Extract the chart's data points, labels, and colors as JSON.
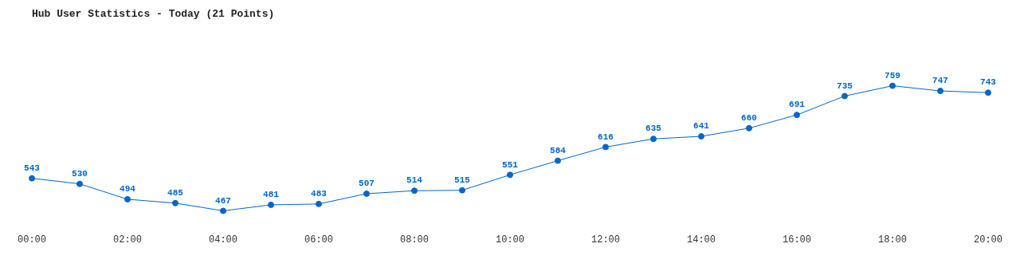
{
  "chart_data": {
    "type": "line",
    "title": "Hub User Statistics - Today (21 Points)",
    "categories": [
      "00:00",
      null,
      "02:00",
      null,
      "04:00",
      null,
      "06:00",
      null,
      "08:00",
      null,
      "10:00",
      null,
      "12:00",
      null,
      "14:00",
      null,
      "16:00",
      null,
      "18:00",
      null,
      "20:00"
    ],
    "series": [
      {
        "color": "#0066cc",
        "values": [
          543,
          530,
          494,
          485,
          467,
          481,
          483,
          507,
          514,
          515,
          551,
          584,
          616,
          635,
          641,
          660,
          691,
          735,
          759,
          747,
          743
        ]
      }
    ],
    "data_labels": true,
    "marker": "circle",
    "line_style": "solid",
    "grid": false,
    "legend": false,
    "tick_labels": "x"
  }
}
